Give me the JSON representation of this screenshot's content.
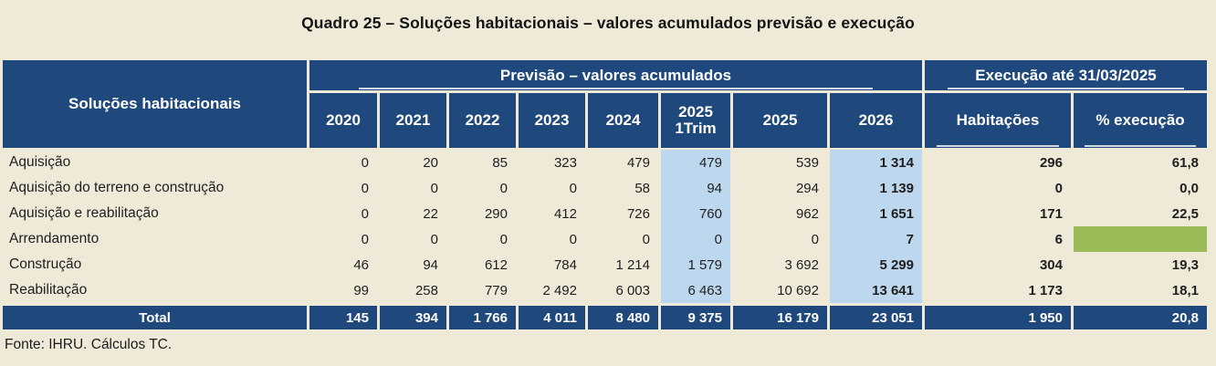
{
  "title": "Quadro 25 – Soluções habitacionais – valores acumulados previsão e execução",
  "table": {
    "corner_header": "Soluções habitacionais",
    "previsao_header": "Previsão – valores acumulados",
    "execucao_header": "Execução até 31/03/2025",
    "year_columns": [
      "2020",
      "2021",
      "2022",
      "2023",
      "2024",
      "2025\n1Trim",
      "2025",
      "2026"
    ],
    "exec_columns": [
      "Habitações",
      "% execução"
    ],
    "rows": [
      {
        "label": "Aquisição",
        "values": [
          "0",
          "20",
          "85",
          "323",
          "479",
          "479",
          "539",
          "1 314"
        ],
        "habitacoes": "296",
        "pct_execucao": "61,8"
      },
      {
        "label": "Aquisição do terreno e construção",
        "values": [
          "0",
          "0",
          "0",
          "0",
          "58",
          "94",
          "294",
          "1 139"
        ],
        "habitacoes": "0",
        "pct_execucao": "0,0"
      },
      {
        "label": "Aquisição e reabilitação",
        "values": [
          "0",
          "22",
          "290",
          "412",
          "726",
          "760",
          "962",
          "1 651"
        ],
        "habitacoes": "171",
        "pct_execucao": "22,5"
      },
      {
        "label": "Arrendamento",
        "values": [
          "0",
          "0",
          "0",
          "0",
          "0",
          "0",
          "0",
          "7"
        ],
        "habitacoes": "6",
        "pct_execucao": ""
      },
      {
        "label": "Construção",
        "values": [
          "46",
          "94",
          "612",
          "784",
          "1 214",
          "1 579",
          "3 692",
          "5 299"
        ],
        "habitacoes": "304",
        "pct_execucao": "19,3"
      },
      {
        "label": "Reabilitação",
        "values": [
          "99",
          "258",
          "779",
          "2 492",
          "6 003",
          "6 463",
          "10 692",
          "13 641"
        ],
        "habitacoes": "1 173",
        "pct_execucao": "18,1"
      }
    ],
    "total_row": {
      "label": "Total",
      "values": [
        "145",
        "394",
        "1 766",
        "4 011",
        "8 480",
        "9 375",
        "16 179",
        "23 051"
      ],
      "habitacoes": "1 950",
      "pct_execucao": "20,8"
    }
  },
  "source_note": "Fonte: IHRU. Cálculos TC.",
  "colors": {
    "header-blue": "#1F497D",
    "highlight-blue": "#BDD7EE",
    "highlight-green": "#9BBB59",
    "page-beige": "#EFE9D8",
    "text-dark": "#1C1C1C"
  }
}
